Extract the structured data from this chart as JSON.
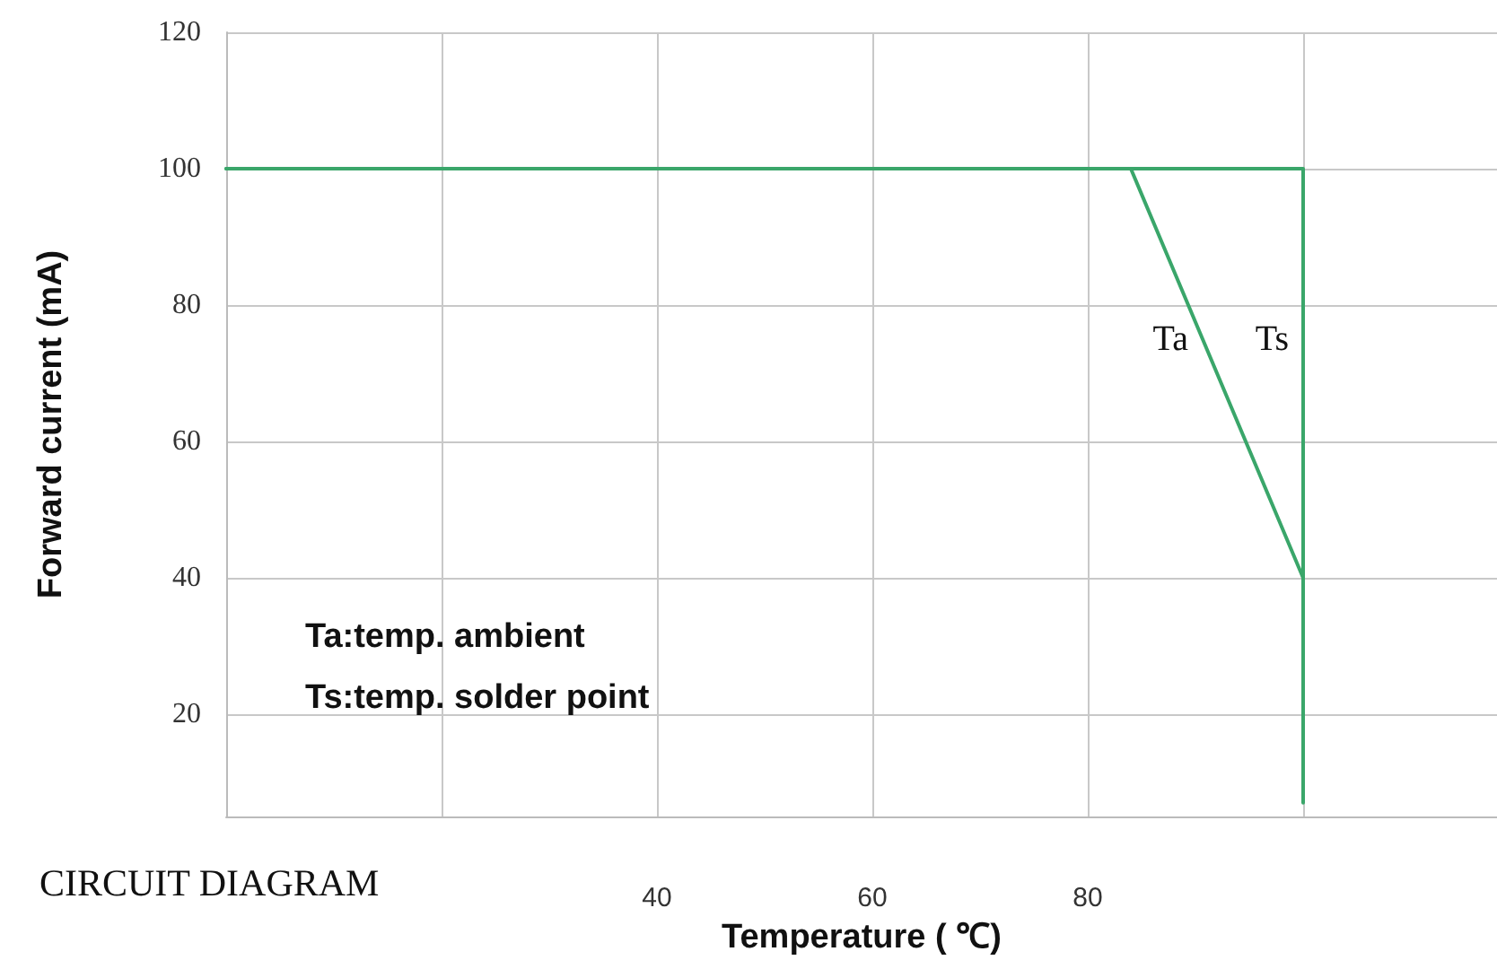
{
  "chart_data": {
    "type": "line",
    "xlabel": "Temperature ( ℃)",
    "ylabel": "Forward current (mA)",
    "xlim": [
      0,
      118
    ],
    "xticks": [
      {
        "value": 0,
        "label": null
      },
      {
        "value": 20,
        "label": null
      },
      40,
      60,
      80,
      {
        "value": 100,
        "label": null
      }
    ],
    "ylim": [
      5,
      120
    ],
    "yticks": [
      20,
      40,
      60,
      80,
      100,
      120
    ],
    "series": [
      {
        "name": "Ta",
        "color": "#3aa66a",
        "x": [
          0,
          84,
          100
        ],
        "values": [
          100,
          100,
          40
        ]
      },
      {
        "name": "Ts",
        "color": "#3aa66a",
        "x": [
          0,
          100,
          100
        ],
        "values": [
          100,
          100,
          7
        ]
      }
    ],
    "annotations": [
      "Ta:temp. ambient",
      "Ts:temp. solder point",
      "CIRCUIT DIAGRAM"
    ],
    "grid": true,
    "legend": false,
    "marker": "none",
    "line_style": "solid"
  }
}
